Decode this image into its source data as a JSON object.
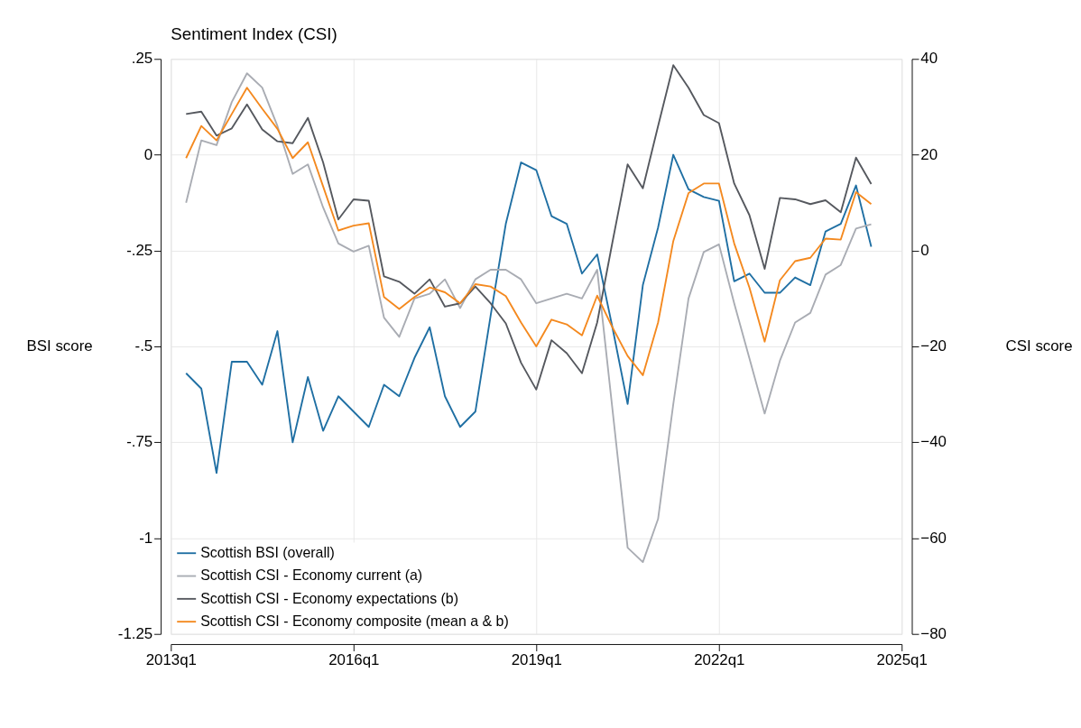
{
  "chart_data": {
    "type": "line",
    "title": "Sentiment Index (CSI)",
    "ylabel": "BSI score",
    "y2label": "CSI score",
    "categories": [
      "2013q1",
      null,
      null,
      null,
      null,
      null,
      null,
      null,
      null,
      null,
      null,
      null,
      "2016q1",
      null,
      null,
      null,
      null,
      null,
      null,
      null,
      null,
      null,
      null,
      null,
      "2019q1",
      null,
      null,
      null,
      null,
      null,
      null,
      null,
      null,
      null,
      null,
      null,
      "2022q1",
      null,
      null,
      null,
      null,
      null,
      null,
      null,
      null,
      null,
      null,
      null,
      "2025q1"
    ],
    "ylim": [
      -1.25,
      0.25
    ],
    "yticks": [
      {
        "value": -1.25,
        "label": "-1.25"
      },
      {
        "value": -1,
        "label": "-1"
      },
      {
        "value": -0.75,
        "label": "-.75"
      },
      {
        "value": -0.5,
        "label": "-.5"
      },
      {
        "value": -0.25,
        "label": "-.25"
      },
      {
        "value": 0,
        "label": "0"
      },
      {
        "value": 0.25,
        "label": ".25"
      }
    ],
    "y2lim": [
      -80,
      40
    ],
    "y2ticks": [
      -80,
      -60,
      -40,
      -20,
      0,
      20,
      40
    ],
    "grid": true,
    "legend": "bottom left",
    "line_style": "solid",
    "series": [
      {
        "name": "Scottish BSI (overall)",
        "color": "#1f6fa3",
        "axis": "y",
        "values": [
          null,
          -0.57,
          -0.61,
          -0.83,
          -0.54,
          -0.54,
          -0.6,
          -0.46,
          -0.75,
          -0.58,
          -0.72,
          -0.63,
          -0.67,
          -0.71,
          -0.6,
          -0.63,
          -0.53,
          -0.45,
          -0.63,
          -0.71,
          -0.67,
          -0.42,
          -0.18,
          -0.02,
          -0.04,
          -0.16,
          -0.18,
          -0.31,
          -0.26,
          -0.45,
          -0.65,
          -0.34,
          -0.19,
          0.0,
          -0.09,
          -0.11,
          -0.12,
          -0.33,
          -0.31,
          -0.36,
          -0.36,
          -0.32,
          -0.34,
          -0.2,
          -0.18,
          -0.08,
          -0.24,
          null,
          null
        ]
      },
      {
        "name": "Scottish CSI - Economy current (a)",
        "color": "#a9acb3",
        "axis": "y2",
        "values": [
          null,
          10,
          23,
          22,
          31,
          37,
          34,
          26,
          16,
          18,
          9,
          1.5,
          -0.2,
          1,
          -14,
          -18,
          -10,
          -9,
          -6,
          -12,
          -6,
          -4,
          -4,
          -6,
          -11,
          -10,
          -9,
          -10,
          -4,
          -33,
          -62,
          -65,
          -56,
          -32,
          -10,
          -0.3,
          1.3,
          -11,
          -22.5,
          -34,
          -23,
          -15,
          -13,
          -5,
          -3,
          4.6,
          5.5,
          null,
          null
        ]
      },
      {
        "name": "Scottish CSI - Economy expectations (b)",
        "color": "#55585e",
        "axis": "y2",
        "values": [
          null,
          28.5,
          29,
          24,
          25.5,
          30.5,
          25.3,
          22.8,
          22.4,
          27.7,
          18.4,
          6.5,
          10.7,
          10.4,
          -5.4,
          -6.5,
          -9,
          -6,
          -11.7,
          -11,
          -7.5,
          -11,
          -15.2,
          -23.4,
          -29,
          -18.7,
          -21.4,
          -25.6,
          -15,
          1.7,
          18,
          13,
          26,
          38.7,
          34,
          28.3,
          26.6,
          14,
          7.4,
          -3.8,
          11,
          10.7,
          9.7,
          10.5,
          8,
          19.4,
          13.9,
          null,
          null
        ]
      },
      {
        "name": "Scottish CSI - Economy composite (mean a & b)",
        "color": "#f4891f",
        "axis": "y2",
        "values": [
          null,
          19.3,
          26,
          23,
          28.5,
          34,
          29.6,
          25.4,
          19.3,
          22.6,
          13.4,
          4.2,
          5.2,
          5.7,
          -9.7,
          -12.2,
          -9.7,
          -7.7,
          -8.7,
          -11,
          -7,
          -7.5,
          -9.5,
          -15,
          -20,
          -14.4,
          -15.4,
          -17.7,
          -9.4,
          -16,
          -22,
          -26,
          -15,
          2,
          12,
          14,
          14,
          1.5,
          -7.7,
          -19,
          -6.2,
          -2.2,
          -1.5,
          2.5,
          2.3,
          12.2,
          9.7,
          null,
          null
        ]
      }
    ]
  }
}
